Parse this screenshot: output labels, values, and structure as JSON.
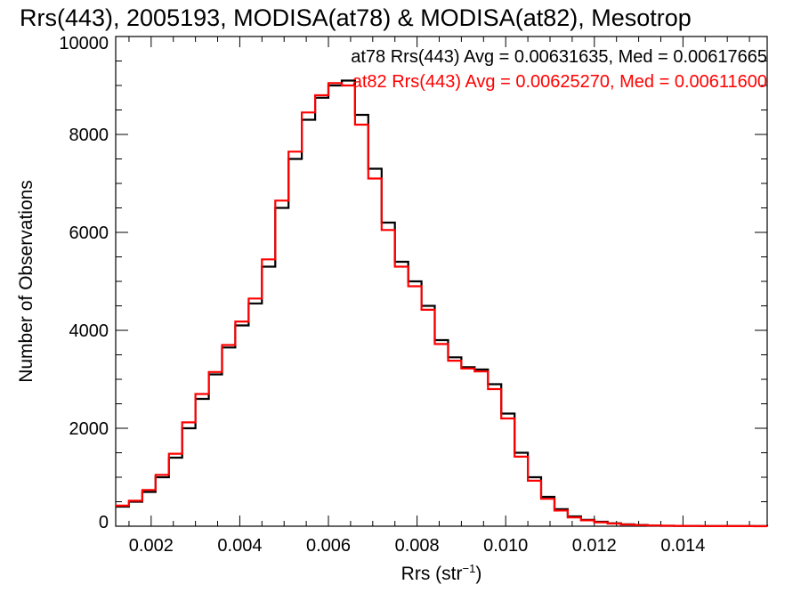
{
  "chart_data": {
    "type": "line",
    "title": "Rrs(443), 2005193, MODISA(at78) & MODISA(at82), Mesotrop",
    "xlabel": "Rrs (str",
    "xlabel_sup": "−1",
    "xlabel_close": ")",
    "ylabel": "Number of Observations",
    "xlim": [
      0.0012,
      0.0159
    ],
    "ylim": [
      0,
      10000
    ],
    "x_ticks": [
      "0.002",
      "0.004",
      "0.006",
      "0.008",
      "0.010",
      "0.012",
      "0.014"
    ],
    "y_ticks": [
      "0",
      "2000",
      "4000",
      "6000",
      "8000",
      "10000"
    ],
    "grid": false,
    "step": true,
    "annotations": [
      {
        "text": "at78 Rrs(443) Avg = 0.00631635, Med = 0.00617665",
        "color": "#000000"
      },
      {
        "text": "at82 Rrs(443) Avg = 0.00625270, Med = 0.00611600",
        "color": "#ff0000"
      }
    ],
    "x": [
      0.0012,
      0.0015,
      0.0018,
      0.0021,
      0.0024,
      0.0027,
      0.003,
      0.0033,
      0.0036,
      0.0039,
      0.0042,
      0.0045,
      0.0048,
      0.0051,
      0.0054,
      0.0057,
      0.006,
      0.0063,
      0.0066,
      0.0069,
      0.0072,
      0.0075,
      0.0078,
      0.0081,
      0.0084,
      0.0087,
      0.009,
      0.0093,
      0.0096,
      0.0099,
      0.0102,
      0.0105,
      0.0108,
      0.0111,
      0.0114,
      0.0117,
      0.012,
      0.0123,
      0.0126,
      0.0129,
      0.0132,
      0.0135,
      0.0138,
      0.0141,
      0.0144,
      0.0147,
      0.015,
      0.0153,
      0.0156,
      0.0159
    ],
    "series": [
      {
        "name": "at78",
        "color": "#000000",
        "values": [
          400,
          500,
          700,
          1000,
          1400,
          2000,
          2600,
          3100,
          3650,
          4100,
          4550,
          5300,
          6500,
          7500,
          8300,
          8750,
          9000,
          9100,
          8400,
          7300,
          6200,
          5400,
          5000,
          4500,
          3800,
          3450,
          3250,
          3200,
          2900,
          2300,
          1500,
          1000,
          600,
          350,
          200,
          130,
          90,
          60,
          40,
          25,
          15,
          10,
          8,
          5,
          4,
          3,
          2,
          1,
          1,
          0
        ]
      },
      {
        "name": "at82",
        "color": "#ff0000",
        "values": [
          420,
          520,
          740,
          1050,
          1480,
          2120,
          2700,
          3150,
          3700,
          4180,
          4650,
          5450,
          6650,
          7650,
          8450,
          8800,
          9050,
          9000,
          8200,
          7100,
          6050,
          5300,
          4900,
          4420,
          3720,
          3380,
          3220,
          3160,
          2800,
          2200,
          1420,
          930,
          560,
          320,
          180,
          120,
          80,
          55,
          35,
          22,
          14,
          9,
          7,
          5,
          3,
          2,
          2,
          1,
          0,
          0
        ]
      }
    ]
  }
}
